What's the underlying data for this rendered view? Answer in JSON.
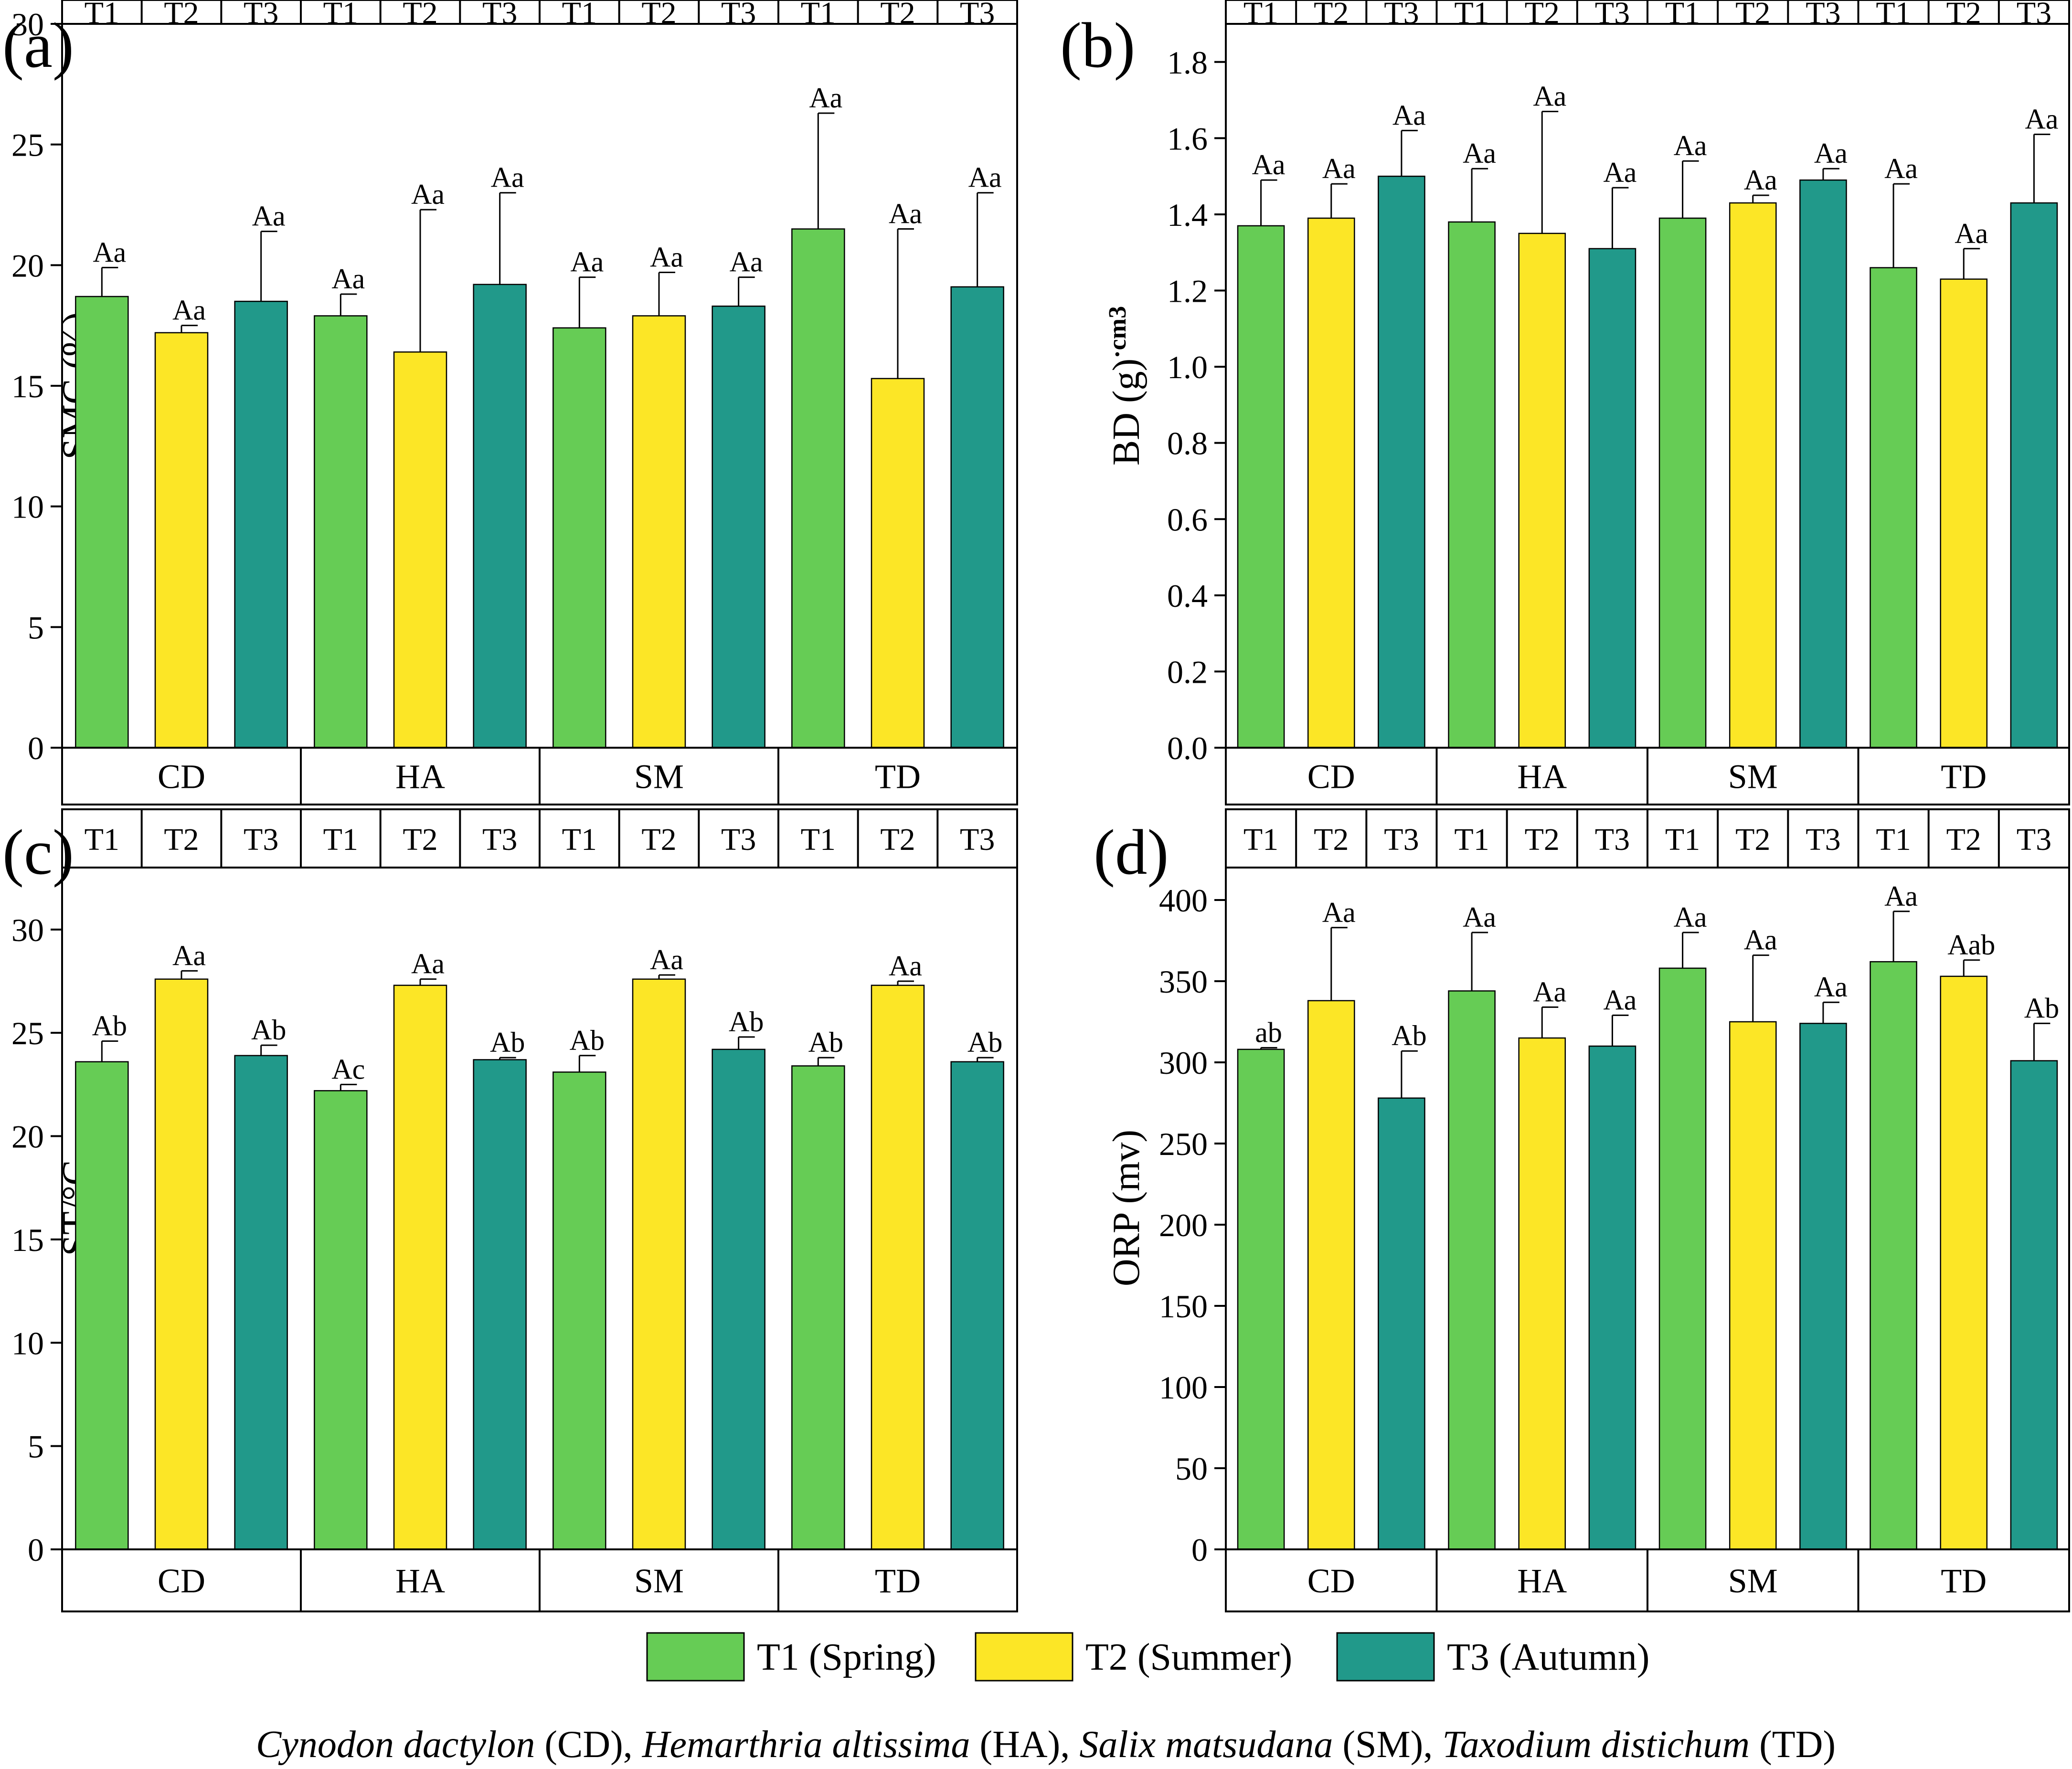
{
  "figure": {
    "legend": {
      "entries": [
        {
          "key": "T1",
          "label": "T1 (Spring)"
        },
        {
          "key": "T2",
          "label": "T2 (Summer)"
        },
        {
          "key": "T3",
          "label": "T3 (Autumn)"
        }
      ]
    },
    "caption": {
      "parts": [
        {
          "text": "Cynodon dactylon",
          "italic": true
        },
        {
          "text": " (CD), ",
          "italic": false
        },
        {
          "text": "Hemarthria altissima",
          "italic": true
        },
        {
          "text": " (HA), ",
          "italic": false
        },
        {
          "text": "Salix matsudana",
          "italic": true
        },
        {
          "text": " (SM), ",
          "italic": false
        },
        {
          "text": "Taxodium distichum",
          "italic": true
        },
        {
          "text": " (TD)",
          "italic": false
        }
      ]
    }
  },
  "colors": {
    "T1": "#66cc55",
    "T2": "#fce626",
    "T3": "#21998a",
    "axis": "#000000"
  },
  "chart_data": [
    {
      "type": "bar",
      "panel_label": "(a)",
      "ylabel": "SMC (%)",
      "ylim": [
        0,
        30
      ],
      "yticks": [
        0,
        5,
        10,
        15,
        20,
        25,
        30
      ],
      "tick_decimals": 0,
      "groups": [
        "CD",
        "HA",
        "SM",
        "TD"
      ],
      "top_labels": [
        "T1",
        "T2",
        "T3"
      ],
      "series": [
        {
          "name": "T1 (Spring)",
          "key": "T1",
          "values": [
            18.7,
            17.9,
            17.4,
            21.5
          ],
          "errors": [
            1.2,
            0.9,
            2.1,
            4.8
          ],
          "letters": [
            "Aa",
            "Aa",
            "Aa",
            "Aa"
          ]
        },
        {
          "name": "T2 (Summer)",
          "key": "T2",
          "values": [
            17.2,
            16.4,
            17.9,
            15.3
          ],
          "errors": [
            0.3,
            5.9,
            1.8,
            6.2
          ],
          "letters": [
            "Aa",
            "Aa",
            "Aa",
            "Aa"
          ]
        },
        {
          "name": "T3 (Autumn)",
          "key": "T3",
          "values": [
            18.5,
            19.2,
            18.3,
            19.1
          ],
          "errors": [
            2.9,
            3.8,
            1.2,
            3.9
          ],
          "letters": [
            "Aa",
            "Aa",
            "Aa",
            "Aa"
          ]
        }
      ]
    },
    {
      "type": "bar",
      "panel_label": "(b)",
      "ylabel": "BD (g)",
      "ylabel_sup": "·cm3",
      "ylim": [
        0,
        1.9
      ],
      "yticks": [
        0.0,
        0.2,
        0.4,
        0.6,
        0.8,
        1.0,
        1.2,
        1.4,
        1.6,
        1.8
      ],
      "tick_decimals": 1,
      "groups": [
        "CD",
        "HA",
        "SM",
        "TD"
      ],
      "top_labels": [
        "T1",
        "T2",
        "T3"
      ],
      "series": [
        {
          "name": "T1 (Spring)",
          "key": "T1",
          "values": [
            1.37,
            1.38,
            1.39,
            1.26
          ],
          "errors": [
            0.12,
            0.14,
            0.15,
            0.22
          ],
          "letters": [
            "Aa",
            "Aa",
            "Aa",
            "Aa"
          ]
        },
        {
          "name": "T2 (Summer)",
          "key": "T2",
          "values": [
            1.39,
            1.35,
            1.43,
            1.23
          ],
          "errors": [
            0.09,
            0.32,
            0.02,
            0.08
          ],
          "letters": [
            "Aa",
            "Aa",
            "Aa",
            "Aa"
          ]
        },
        {
          "name": "T3 (Autumn)",
          "key": "T3",
          "values": [
            1.5,
            1.31,
            1.49,
            1.43
          ],
          "errors": [
            0.12,
            0.16,
            0.03,
            0.18
          ],
          "letters": [
            "Aa",
            "Aa",
            "Aa",
            "Aa"
          ]
        }
      ]
    },
    {
      "type": "bar",
      "panel_label": "(c)",
      "ylabel": "ST/°C",
      "ylim": [
        0,
        33
      ],
      "yticks": [
        0,
        5,
        10,
        15,
        20,
        25,
        30
      ],
      "tick_decimals": 0,
      "groups": [
        "CD",
        "HA",
        "SM",
        "TD"
      ],
      "top_labels": [
        "T1",
        "T2",
        "T3"
      ],
      "series": [
        {
          "name": "T1 (Spring)",
          "key": "T1",
          "values": [
            23.6,
            22.2,
            23.1,
            23.4
          ],
          "errors": [
            1.0,
            0.3,
            0.8,
            0.4
          ],
          "letters": [
            "Ab",
            "Ac",
            "Ab",
            "Ab"
          ]
        },
        {
          "name": "T2 (Summer)",
          "key": "T2",
          "values": [
            27.6,
            27.3,
            27.6,
            27.3
          ],
          "errors": [
            0.4,
            0.3,
            0.2,
            0.2
          ],
          "letters": [
            "Aa",
            "Aa",
            "Aa",
            "Aa"
          ]
        },
        {
          "name": "T3 (Autumn)",
          "key": "T3",
          "values": [
            23.9,
            23.7,
            24.2,
            23.6
          ],
          "errors": [
            0.5,
            0.1,
            0.6,
            0.2
          ],
          "letters": [
            "Ab",
            "Ab",
            "Ab",
            "Ab"
          ]
        }
      ]
    },
    {
      "type": "bar",
      "panel_label": "(d)",
      "ylabel": "ORP (mv)",
      "ylim": [
        0,
        420
      ],
      "yticks": [
        0,
        50,
        100,
        150,
        200,
        250,
        300,
        350,
        400
      ],
      "tick_decimals": 0,
      "groups": [
        "CD",
        "HA",
        "SM",
        "TD"
      ],
      "top_labels": [
        "T1",
        "T2",
        "T3"
      ],
      "series": [
        {
          "name": "T1 (Spring)",
          "key": "T1",
          "values": [
            308,
            344,
            358,
            362
          ],
          "errors": [
            1,
            36,
            22,
            31
          ],
          "letters": [
            "ab",
            "Aa",
            "Aa",
            "Aa"
          ]
        },
        {
          "name": "T2 (Summer)",
          "key": "T2",
          "values": [
            338,
            315,
            325,
            353
          ],
          "errors": [
            45,
            19,
            41,
            10
          ],
          "letters": [
            "Aa",
            "Aa",
            "Aa",
            "Aab"
          ]
        },
        {
          "name": "T3 (Autumn)",
          "key": "T3",
          "values": [
            278,
            310,
            324,
            301
          ],
          "errors": [
            29,
            19,
            13,
            23
          ],
          "letters": [
            "Ab",
            "Aa",
            "Aa",
            "Ab"
          ]
        }
      ]
    }
  ]
}
